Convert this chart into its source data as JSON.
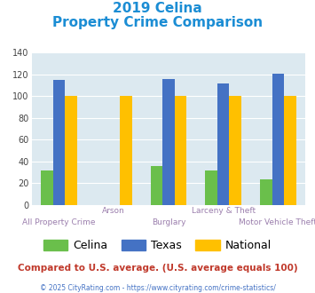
{
  "title_line1": "2019 Celina",
  "title_line2": "Property Crime Comparison",
  "categories": [
    "All Property Crime",
    "Arson",
    "Burglary",
    "Larceny & Theft",
    "Motor Vehicle Theft"
  ],
  "celina": [
    32,
    0,
    36,
    32,
    24
  ],
  "texas": [
    115,
    0,
    116,
    112,
    121
  ],
  "national": [
    100,
    100,
    100,
    100,
    100
  ],
  "celina_color": "#6abf4b",
  "texas_color": "#4472c4",
  "national_color": "#ffc000",
  "bg_color": "#dce9f0",
  "title_color": "#1b8dd4",
  "xlabel_top_color": "#9b7fad",
  "xlabel_bot_color": "#9b7fad",
  "footer_text": "Compared to U.S. average. (U.S. average equals 100)",
  "footer_color": "#c0392b",
  "copyright_text": "© 2025 CityRating.com - https://www.cityrating.com/crime-statistics/",
  "copyright_color": "#4472c4",
  "ylim": [
    0,
    140
  ],
  "yticks": [
    0,
    20,
    40,
    60,
    80,
    100,
    120,
    140
  ],
  "bar_width": 0.22,
  "xlabels_top": [
    "",
    "Arson",
    "",
    "Larceny & Theft",
    ""
  ],
  "xlabels_bottom": [
    "All Property Crime",
    "",
    "Burglary",
    "",
    "Motor Vehicle Theft"
  ]
}
